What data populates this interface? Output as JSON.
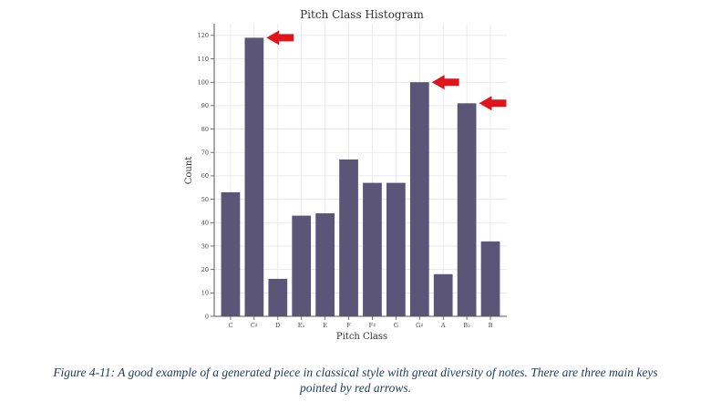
{
  "chart_data": {
    "type": "bar",
    "title": "Pitch Class Histogram",
    "xlabel": "Pitch Class",
    "ylabel": "Count",
    "categories": [
      "C",
      "C♯",
      "D",
      "E♭",
      "E",
      "F",
      "F♯",
      "G",
      "G♯",
      "A",
      "B♭",
      "B"
    ],
    "values": [
      53,
      119,
      16,
      43,
      44,
      67,
      57,
      57,
      100,
      18,
      91,
      32
    ],
    "ylim": [
      0,
      125
    ],
    "yticks": [
      0,
      10,
      20,
      30,
      40,
      50,
      60,
      70,
      80,
      90,
      100,
      110,
      120
    ],
    "grid": true,
    "bar_color": "#5b5577",
    "arrows": {
      "color": "#e0141a",
      "categories": [
        "C♯",
        "G♯",
        "B♭"
      ]
    }
  },
  "caption": {
    "line1": "Figure 4-11: A good example of a generated piece in classical style with great diversity of notes. There are three main keys",
    "line2": "pointed by red arrows."
  }
}
